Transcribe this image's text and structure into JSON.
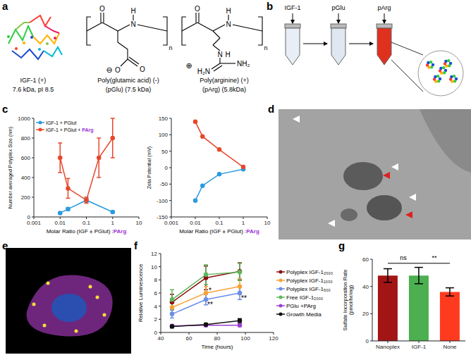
{
  "panels": {
    "a": {
      "label": "a",
      "molecules": [
        {
          "name": "IGF-1 (+)",
          "detail": "7.6 kDa, pI 8.5"
        },
        {
          "name": "Poly(glutamic acid) (-)",
          "detail": "(pGlu) (7.5 kDa)",
          "atoms": {
            "carbonyl": "O",
            "amide_n": "N",
            "amide_h": "H",
            "repeat": "n",
            "acid_o": "O",
            "acid_o2": "O",
            "charge": "⊖"
          }
        },
        {
          "name": "Poly(arginine) (+)",
          "detail": "(pArg) (5.8kDa)",
          "atoms": {
            "carbonyl": "O",
            "amide_n": "N",
            "amide_h": "H",
            "repeat": "n",
            "imine_n": "N",
            "imine_h": "H",
            "amine_top": "NH₂",
            "amine_left": "H₂N",
            "charge": "⊕"
          }
        }
      ]
    },
    "b": {
      "label": "b",
      "tubes": [
        "IGF-1",
        "pGlu",
        "pArg"
      ]
    },
    "d": {
      "label": "d"
    },
    "e": {
      "label": "e"
    }
  },
  "chart_data": [
    {
      "panel": "c",
      "type": "line",
      "ylabel": "Number averaged Polyplex Size (nm)",
      "xlabel": "Molar Ratio (IGF ± PGlut) :PArg",
      "log": "x",
      "xlim": [
        0.001,
        10
      ],
      "xticks": [
        0.001,
        0.01,
        0.1,
        1,
        10
      ],
      "ylim": [
        0,
        1000
      ],
      "yticks": [
        0,
        200,
        400,
        600,
        800,
        1000
      ],
      "legend": "upper left",
      "marker": "circle",
      "series": [
        {
          "name": "IGF-1 + PGlut",
          "color": "#2b9be0",
          "x": [
            0.01,
            0.02,
            0.1,
            1
          ],
          "values": [
            40,
            80,
            170,
            50
          ],
          "errors": [
            10,
            15,
            20,
            10
          ]
        },
        {
          "name": "IGF-1 + PGlut + PArg",
          "color": "#e8472b",
          "x": [
            0.01,
            0.02,
            0.1,
            0.3,
            1
          ],
          "values": [
            600,
            290,
            170,
            600,
            800
          ],
          "errors": [
            150,
            100,
            30,
            200,
            200
          ]
        }
      ]
    },
    {
      "panel": "c",
      "type": "line",
      "ylabel": "Zeta Potential (mV)",
      "xlabel": "Molar Ratio (IGF ± PGlut) :PArg",
      "log": "x",
      "xlim": [
        0.001,
        10
      ],
      "xticks": [
        0.001,
        0.01,
        0.1,
        1,
        10
      ],
      "ylim": [
        -150,
        150
      ],
      "yticks": [
        -150,
        -100,
        -50,
        0,
        50,
        100,
        150
      ],
      "marker": "circle",
      "series": [
        {
          "color": "#2b9be0",
          "x": [
            0.01,
            0.02,
            0.1,
            1
          ],
          "values": [
            -100,
            -55,
            -20,
            -5
          ]
        },
        {
          "color": "#e8472b",
          "x": [
            0.01,
            0.02,
            0.1,
            1
          ],
          "values": [
            140,
            95,
            55,
            2
          ]
        }
      ]
    },
    {
      "panel": "f",
      "type": "line",
      "xlabel": "Time (hours)",
      "ylabel": "Relative Luminescence",
      "x": [
        48,
        72,
        96
      ],
      "xlim": [
        40,
        120
      ],
      "xticks": [
        40,
        60,
        80,
        100,
        120
      ],
      "ylim": [
        0,
        12
      ],
      "yticks": [
        0,
        2,
        4,
        6,
        8,
        10,
        12
      ],
      "legend": "right",
      "marker": "circle",
      "series": [
        {
          "name": "Polyplex IGF-1₂₀₀₀",
          "color": "#8b1010",
          "values": [
            4.6,
            8.3,
            9.3
          ],
          "errors": [
            1.2,
            1.8,
            1.3
          ]
        },
        {
          "name": "Polyplex IGF-1₁₀₀₀",
          "color": "#f5a33a",
          "values": [
            3.8,
            6.0,
            7.0
          ],
          "errors": [
            0.8,
            1.0,
            1.2
          ]
        },
        {
          "name": "Polyplex IGF-1₅₀₀",
          "color": "#6a8ee8",
          "values": [
            2.8,
            5.0,
            6.0
          ],
          "errors": [
            0.6,
            0.8,
            1.0
          ]
        },
        {
          "name": "Free IGF-1₂₀₀₀",
          "color": "#5cb85c",
          "values": [
            5.0,
            8.8,
            9.2
          ],
          "errors": [
            1.5,
            1.5,
            1.3
          ]
        },
        {
          "name": "PGlu +PArg",
          "color": "#a040d0",
          "values": [
            1.0,
            1.1,
            1.1
          ],
          "errors": [
            0.2,
            0.2,
            0.2
          ]
        },
        {
          "name": "Growth Media",
          "color": "#111111",
          "values": [
            0.9,
            1.2,
            1.8
          ],
          "errors": [
            0.2,
            0.2,
            0.3
          ]
        }
      ],
      "annotations": [
        {
          "text": "*",
          "x": 75,
          "y": 6.4
        },
        {
          "text": "**",
          "x": 75,
          "y": 4.2
        },
        {
          "text": "**",
          "x": 99,
          "y": 5.2
        }
      ]
    },
    {
      "panel": "g",
      "type": "bar",
      "ylabel": "Sulfate Incorporation Rate (pmol/hr/mg)",
      "categories": [
        "Nanoplex",
        "IGF-1",
        "None"
      ],
      "values": [
        48,
        48,
        36
      ],
      "errors": [
        5,
        6,
        3
      ],
      "colors": [
        "#a31515",
        "#4caf50",
        "#ff3b1f"
      ],
      "ylim": [
        0,
        60
      ],
      "yticks": [
        0,
        20,
        40,
        60
      ],
      "annotations": [
        {
          "from": "Nanoplex",
          "to": "IGF-1",
          "text": "ns",
          "y": 57
        },
        {
          "from": "IGF-1",
          "to": "None",
          "text": "**",
          "y": 57
        }
      ]
    }
  ]
}
